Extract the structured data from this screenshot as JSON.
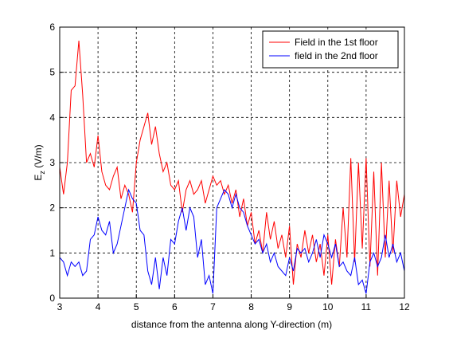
{
  "chart_data": {
    "type": "line",
    "xlabel": "distance from the antenna along Y-direction (m)",
    "ylabel": [
      "E",
      "z",
      " (V/m)"
    ],
    "xlim": [
      3,
      12
    ],
    "xticks": [
      3,
      4,
      5,
      6,
      7,
      8,
      9,
      10,
      11,
      12
    ],
    "ylim": [
      0,
      6
    ],
    "yticks": [
      0,
      1,
      2,
      3,
      4,
      5,
      6
    ],
    "grid": true,
    "legend": "upper right",
    "x": [
      3.0,
      3.1,
      3.2,
      3.3,
      3.4,
      3.5,
      3.6,
      3.7,
      3.8,
      3.9,
      4.0,
      4.1,
      4.2,
      4.3,
      4.4,
      4.5,
      4.6,
      4.7,
      4.8,
      4.9,
      5.0,
      5.1,
      5.2,
      5.3,
      5.4,
      5.5,
      5.6,
      5.7,
      5.8,
      5.9,
      6.0,
      6.1,
      6.2,
      6.3,
      6.4,
      6.5,
      6.6,
      6.7,
      6.8,
      6.9,
      7.0,
      7.1,
      7.2,
      7.3,
      7.4,
      7.5,
      7.6,
      7.7,
      7.8,
      7.9,
      8.0,
      8.1,
      8.2,
      8.3,
      8.4,
      8.5,
      8.6,
      8.7,
      8.8,
      8.9,
      9.0,
      9.1,
      9.2,
      9.3,
      9.4,
      9.5,
      9.6,
      9.7,
      9.8,
      9.9,
      10.0,
      10.1,
      10.2,
      10.3,
      10.4,
      10.5,
      10.6,
      10.7,
      10.8,
      10.9,
      11.0,
      11.1,
      11.2,
      11.3,
      11.4,
      11.5,
      11.6,
      11.7,
      11.8,
      11.9,
      12.0
    ],
    "series": [
      {
        "name": "Field in the 1st floor",
        "color": "#ff0000",
        "values": [
          2.9,
          2.3,
          3.0,
          4.6,
          4.7,
          5.7,
          4.5,
          3.0,
          3.2,
          2.9,
          3.6,
          2.8,
          2.5,
          2.4,
          2.7,
          2.9,
          2.2,
          2.5,
          2.3,
          1.9,
          3.0,
          3.5,
          3.8,
          4.1,
          3.4,
          3.8,
          3.2,
          2.8,
          3.0,
          2.5,
          2.4,
          2.6,
          1.9,
          2.4,
          2.6,
          2.3,
          2.4,
          2.6,
          2.1,
          2.4,
          2.7,
          2.5,
          2.6,
          2.3,
          2.5,
          2.1,
          2.4,
          1.8,
          2.2,
          1.6,
          1.9,
          1.2,
          1.5,
          1.0,
          1.9,
          1.3,
          1.7,
          1.1,
          1.4,
          0.9,
          1.6,
          0.3,
          1.2,
          0.9,
          1.5,
          1.0,
          1.4,
          0.8,
          1.2,
          0.5,
          1.4,
          0.3,
          1.3,
          0.7,
          2.0,
          0.9,
          3.1,
          0.8,
          3.0,
          1.1,
          3.1,
          0.7,
          2.8,
          0.5,
          3.0,
          0.9,
          2.6,
          1.0,
          2.6,
          1.8,
          2.3
        ]
      },
      {
        "name": "field in the 2nd floor",
        "color": "#0000ff",
        "values": [
          0.9,
          0.8,
          0.5,
          0.8,
          0.7,
          0.8,
          0.5,
          0.6,
          1.3,
          1.4,
          1.8,
          1.5,
          1.4,
          1.7,
          1.0,
          1.2,
          1.6,
          2.0,
          2.4,
          2.2,
          2.1,
          1.5,
          1.4,
          0.6,
          0.3,
          0.9,
          0.2,
          0.9,
          0.5,
          1.3,
          1.2,
          1.7,
          2.0,
          1.5,
          2.0,
          1.8,
          0.9,
          1.3,
          0.3,
          0.5,
          0.1,
          2.0,
          2.2,
          2.4,
          2.3,
          2.0,
          2.3,
          2.0,
          1.9,
          1.6,
          1.4,
          1.2,
          1.3,
          1.0,
          1.2,
          0.8,
          1.0,
          0.7,
          0.6,
          0.5,
          0.9,
          0.6,
          1.1,
          1.0,
          1.1,
          0.8,
          1.0,
          1.3,
          0.9,
          1.4,
          1.2,
          0.9,
          1.2,
          0.7,
          0.8,
          0.6,
          0.5,
          0.9,
          0.3,
          0.4,
          0.1,
          0.8,
          1.0,
          0.7,
          0.9,
          1.4,
          0.9,
          1.2,
          0.8,
          1.0,
          0.6
        ]
      }
    ]
  }
}
